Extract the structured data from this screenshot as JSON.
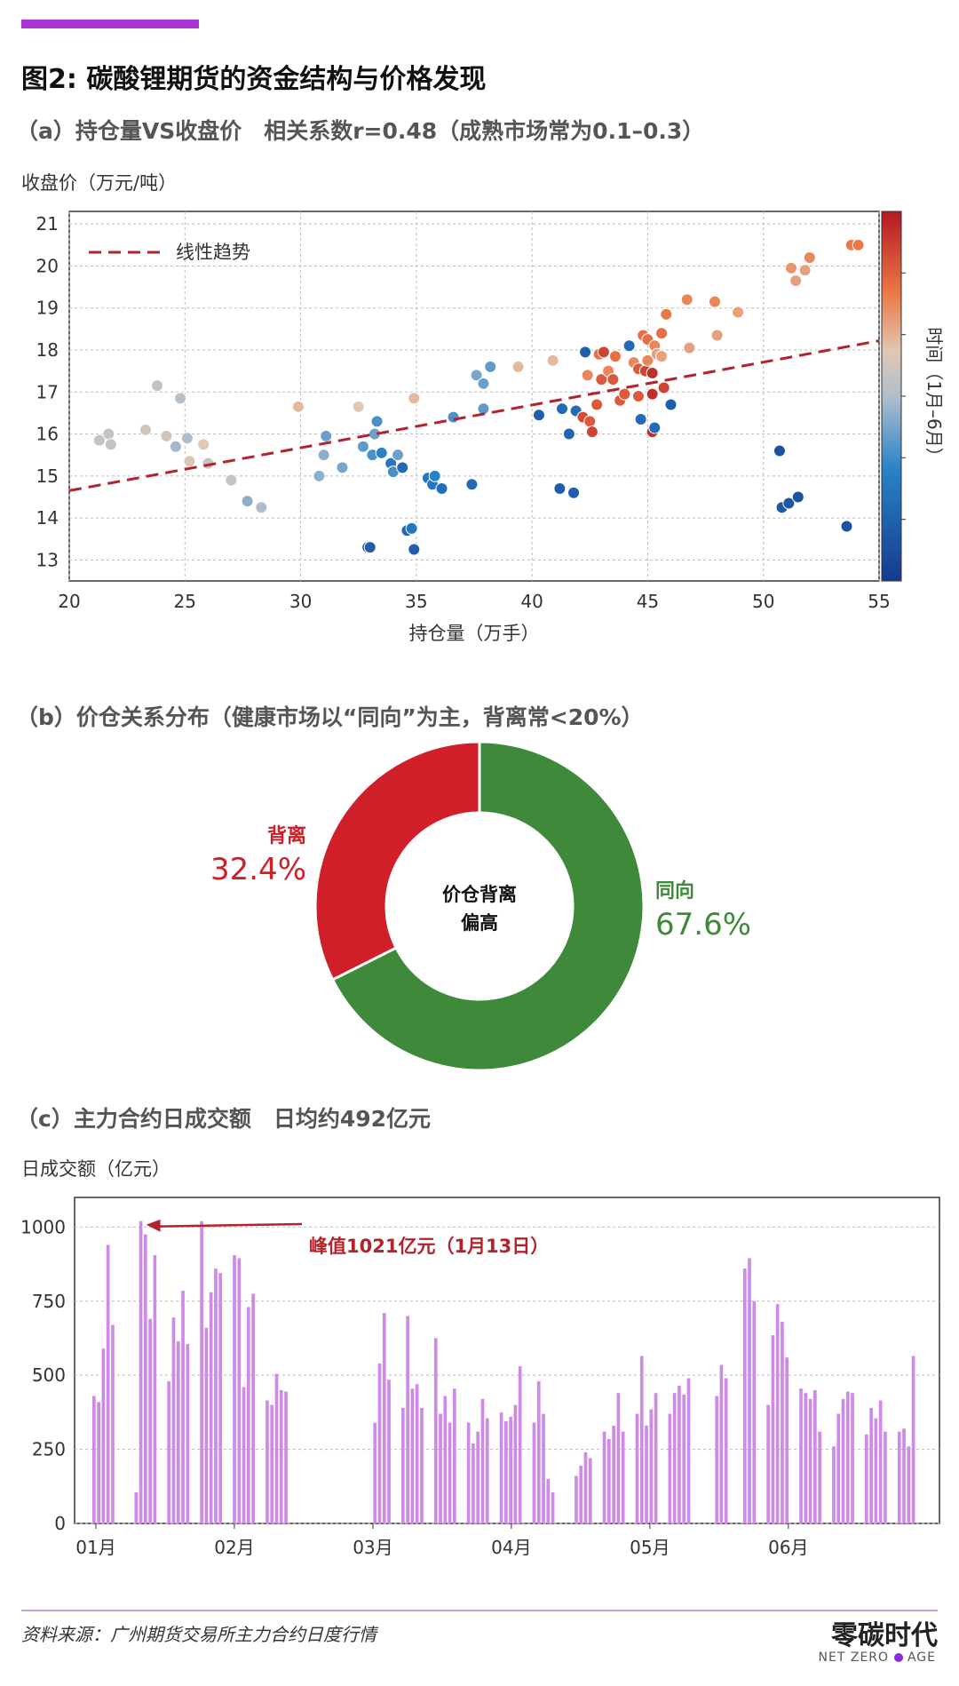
{
  "title": "图2: 碳酸锂期货的资金结构与价格发现",
  "source": "资料来源：广州期货交易所主力合约日度行情",
  "brand": {
    "cn": "零碳时代",
    "en_left": "NET ZERO",
    "en_right": "AGE"
  },
  "colors": {
    "accent": "#a934d8",
    "trend": "#b2232b",
    "diverge": "#d11f2a",
    "same": "#3f8a3a",
    "bar": "#cf8ae8"
  },
  "chart_data": [
    {
      "type": "scatter",
      "title": "（a）持仓量VS收盘价　相关系数r=0.48（成熟市场常为0.1–0.3）",
      "ylabel": "收盘价（万元/吨）",
      "xlabel": "持仓量（万手）",
      "legend": "线性趋势",
      "colorbar_label": "时间（1月–6月）",
      "xlim": [
        20,
        55
      ],
      "ylim": [
        12.5,
        21.3
      ],
      "xticks": [
        "20",
        "25",
        "30",
        "35",
        "40",
        "45",
        "50",
        "55"
      ],
      "yticks": [
        "13",
        "14",
        "15",
        "16",
        "17",
        "18",
        "19",
        "20",
        "21"
      ],
      "trend": [
        [
          20,
          14.65
        ],
        [
          55,
          18.22
        ]
      ],
      "points": [
        [
          21.3,
          15.85,
          0.55
        ],
        [
          21.7,
          16.0,
          0.55
        ],
        [
          21.8,
          15.75,
          0.55
        ],
        [
          23.3,
          16.1,
          0.58
        ],
        [
          23.8,
          17.15,
          0.55
        ],
        [
          24.2,
          15.95,
          0.58
        ],
        [
          24.6,
          15.7,
          0.48
        ],
        [
          24.8,
          16.85,
          0.52
        ],
        [
          25.1,
          15.9,
          0.5
        ],
        [
          25.2,
          15.35,
          0.6
        ],
        [
          25.8,
          15.75,
          0.62
        ],
        [
          26.0,
          15.3,
          0.55
        ],
        [
          27.0,
          14.9,
          0.55
        ],
        [
          27.7,
          14.4,
          0.45
        ],
        [
          28.3,
          14.25,
          0.5
        ],
        [
          29.9,
          16.65,
          0.65
        ],
        [
          30.8,
          15.0,
          0.45
        ],
        [
          31.0,
          15.5,
          0.45
        ],
        [
          31.1,
          15.95,
          0.4
        ],
        [
          31.8,
          15.2,
          0.42
        ],
        [
          32.5,
          16.65,
          0.62
        ],
        [
          32.7,
          15.7,
          0.38
        ],
        [
          32.9,
          13.3,
          0.15
        ],
        [
          33.0,
          13.3,
          0.15
        ],
        [
          33.1,
          15.5,
          0.35
        ],
        [
          33.2,
          16.0,
          0.4
        ],
        [
          33.3,
          16.3,
          0.35
        ],
        [
          33.5,
          15.55,
          0.3
        ],
        [
          33.9,
          15.3,
          0.25
        ],
        [
          34.0,
          15.1,
          0.35
        ],
        [
          34.2,
          15.5,
          0.4
        ],
        [
          34.4,
          15.2,
          0.2
        ],
        [
          34.6,
          13.7,
          0.2
        ],
        [
          34.8,
          13.75,
          0.25
        ],
        [
          34.9,
          13.25,
          0.15
        ],
        [
          34.9,
          16.85,
          0.65
        ],
        [
          35.5,
          14.95,
          0.25
        ],
        [
          35.7,
          14.8,
          0.25
        ],
        [
          35.8,
          15.0,
          0.3
        ],
        [
          36.1,
          14.7,
          0.22
        ],
        [
          36.6,
          16.4,
          0.35
        ],
        [
          37.4,
          14.8,
          0.2
        ],
        [
          37.6,
          17.4,
          0.42
        ],
        [
          37.9,
          16.6,
          0.38
        ],
        [
          37.9,
          17.2,
          0.4
        ],
        [
          38.2,
          17.6,
          0.38
        ],
        [
          39.4,
          17.6,
          0.65
        ],
        [
          40.3,
          16.45,
          0.15
        ],
        [
          40.9,
          17.75,
          0.65
        ],
        [
          41.2,
          14.7,
          0.15
        ],
        [
          41.3,
          16.6,
          0.2
        ],
        [
          41.6,
          16.0,
          0.18
        ],
        [
          41.8,
          14.6,
          0.15
        ],
        [
          41.9,
          16.55,
          0.2
        ],
        [
          42.2,
          16.4,
          0.88
        ],
        [
          42.3,
          17.95,
          0.15
        ],
        [
          42.4,
          17.4,
          0.75
        ],
        [
          42.5,
          16.3,
          0.85
        ],
        [
          42.6,
          16.05,
          0.9
        ],
        [
          42.8,
          16.7,
          0.85
        ],
        [
          42.9,
          17.9,
          0.8
        ],
        [
          43.0,
          17.3,
          0.85
        ],
        [
          43.1,
          17.95,
          0.9
        ],
        [
          43.3,
          17.5,
          0.75
        ],
        [
          43.5,
          17.3,
          0.85
        ],
        [
          43.6,
          17.85,
          0.8
        ],
        [
          43.8,
          16.8,
          0.85
        ],
        [
          44.0,
          16.95,
          0.85
        ],
        [
          44.2,
          18.1,
          0.2
        ],
        [
          44.4,
          17.7,
          0.75
        ],
        [
          44.6,
          16.9,
          0.85
        ],
        [
          44.6,
          17.55,
          0.85
        ],
        [
          44.7,
          16.35,
          0.2
        ],
        [
          44.8,
          18.35,
          0.8
        ],
        [
          44.9,
          17.5,
          0.9
        ],
        [
          45.0,
          17.75,
          0.75
        ],
        [
          45.0,
          18.25,
          0.8
        ],
        [
          45.2,
          17.45,
          0.95
        ],
        [
          45.2,
          16.95,
          0.95
        ],
        [
          45.2,
          16.05,
          0.95
        ],
        [
          45.3,
          18.1,
          0.75
        ],
        [
          45.3,
          16.15,
          0.2
        ],
        [
          45.4,
          17.9,
          0.7
        ],
        [
          45.6,
          17.85,
          0.7
        ],
        [
          45.6,
          18.4,
          0.8
        ],
        [
          45.7,
          17.1,
          0.9
        ],
        [
          45.8,
          18.85,
          0.78
        ],
        [
          46.0,
          16.7,
          0.15
        ],
        [
          46.7,
          19.2,
          0.75
        ],
        [
          46.8,
          18.05,
          0.7
        ],
        [
          47.9,
          19.15,
          0.75
        ],
        [
          48.0,
          18.35,
          0.7
        ],
        [
          48.9,
          18.9,
          0.7
        ],
        [
          50.7,
          15.6,
          0.1
        ],
        [
          50.8,
          14.25,
          0.12
        ],
        [
          51.1,
          14.35,
          0.12
        ],
        [
          51.2,
          19.95,
          0.72
        ],
        [
          51.4,
          19.65,
          0.7
        ],
        [
          51.5,
          14.5,
          0.1
        ],
        [
          51.8,
          19.9,
          0.7
        ],
        [
          52.0,
          20.2,
          0.75
        ],
        [
          53.6,
          13.8,
          0.1
        ],
        [
          53.8,
          20.5,
          0.78
        ],
        [
          54.1,
          20.5,
          0.78
        ]
      ]
    },
    {
      "type": "pie",
      "title": "（b）价仓关系分布（健康市场以“同向”为主，背离常<20%）",
      "center_text": [
        "价仓背离",
        "偏高"
      ],
      "slices": [
        {
          "name": "背离",
          "value": 32.4,
          "label": "32.4%"
        },
        {
          "name": "同向",
          "value": 67.6,
          "label": "67.6%"
        }
      ]
    },
    {
      "type": "bar",
      "title": "（c）主力合约日成交额　日均约492亿元",
      "ylabel": "日成交额（亿元）",
      "ylim": [
        0,
        1100
      ],
      "yticks": [
        0,
        250,
        500,
        750,
        1000
      ],
      "xticks": [
        "01月",
        "02月",
        "03月",
        "04月",
        "05月",
        "06月"
      ],
      "annotation": "峰值1021亿元（1月13日）",
      "values": [
        430,
        410,
        590,
        940,
        670,
        0,
        0,
        0,
        0,
        105,
        1020,
        975,
        690,
        905,
        0,
        0,
        480,
        695,
        615,
        785,
        605,
        0,
        0,
        1020,
        660,
        780,
        860,
        845,
        0,
        0,
        905,
        895,
        460,
        730,
        775,
        0,
        0,
        415,
        400,
        505,
        450,
        445,
        0,
        0,
        0,
        0,
        0,
        0,
        0,
        0,
        0,
        0,
        0,
        0,
        0,
        0,
        0,
        0,
        0,
        0,
        340,
        540,
        710,
        485,
        0,
        0,
        390,
        700,
        455,
        470,
        390,
        0,
        0,
        625,
        370,
        430,
        340,
        455,
        0,
        0,
        340,
        270,
        310,
        420,
        355,
        0,
        0,
        375,
        345,
        360,
        400,
        530,
        0,
        0,
        340,
        480,
        370,
        150,
        105,
        0,
        0,
        0,
        0,
        160,
        195,
        240,
        220,
        0,
        0,
        310,
        285,
        330,
        440,
        310,
        0,
        0,
        370,
        565,
        330,
        385,
        440,
        0,
        0,
        370,
        440,
        465,
        435,
        490,
        0,
        0,
        0,
        0,
        0,
        430,
        535,
        490,
        0,
        0,
        0,
        860,
        895,
        750,
        0,
        0,
        400,
        635,
        740,
        680,
        560,
        0,
        0,
        455,
        440,
        420,
        450,
        310,
        0,
        0,
        260,
        370,
        420,
        445,
        440,
        0,
        0,
        300,
        390,
        355,
        415,
        310,
        0,
        0,
        310,
        320,
        260,
        565
      ]
    }
  ]
}
